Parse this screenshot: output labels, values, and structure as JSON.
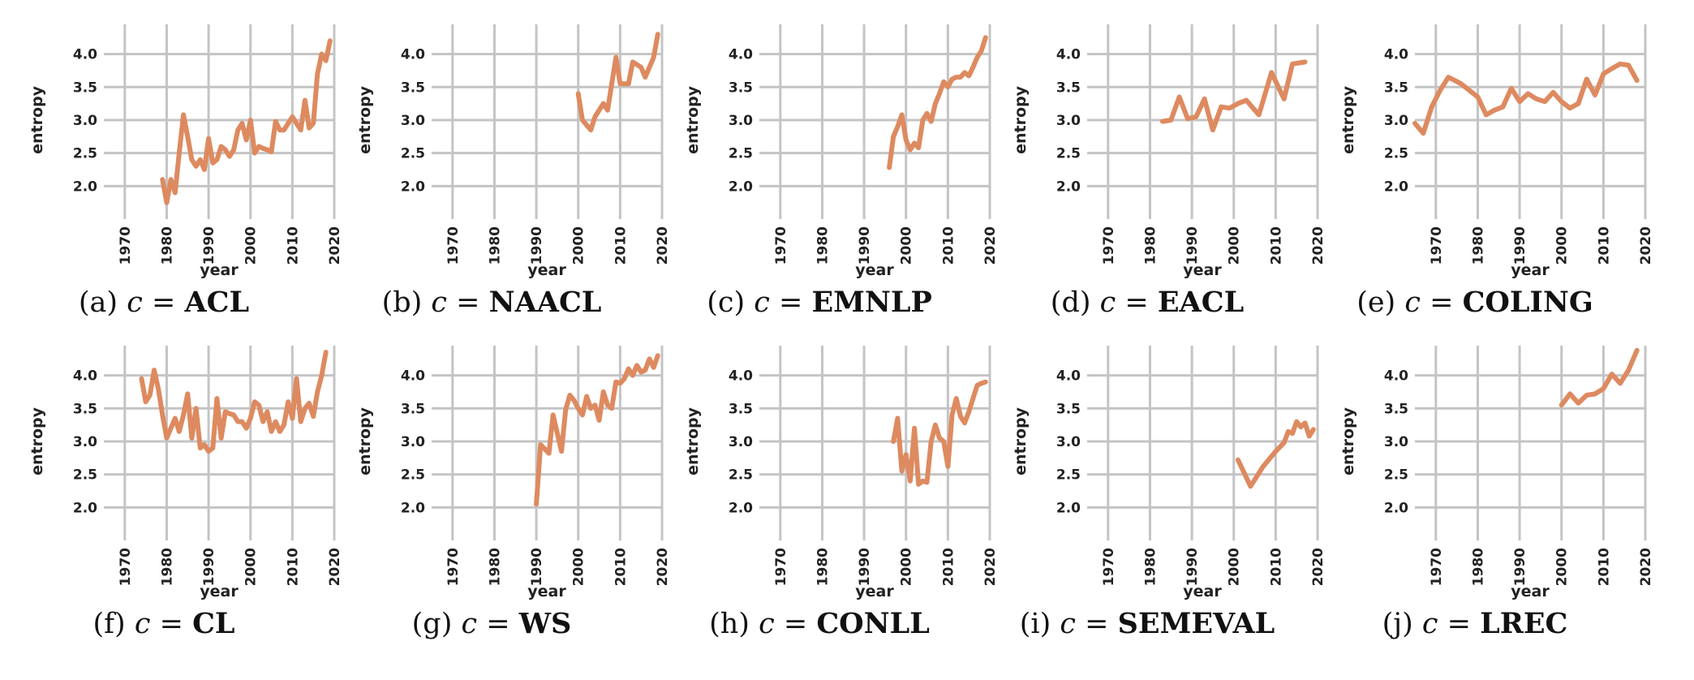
{
  "chart_data": [
    {
      "type": "line",
      "id": "a",
      "label": "(a)",
      "variable": "c",
      "equals": "=",
      "conference": "ACL",
      "xlabel": "year",
      "ylabel": "entropy",
      "xlim": [
        1965,
        2020
      ],
      "ylim": [
        1.5,
        4.45
      ],
      "xticks": [
        "1970",
        "1980",
        "1990",
        "2000",
        "2010",
        "2020"
      ],
      "yticks": [
        "2.0",
        "2.5",
        "3.0",
        "3.5",
        "4.0"
      ],
      "grid": true,
      "color": "#de8a60",
      "x": [
        1979,
        1980,
        1981,
        1982,
        1983,
        1984,
        1985,
        1986,
        1987,
        1988,
        1989,
        1990,
        1991,
        1992,
        1993,
        1994,
        1995,
        1996,
        1997,
        1998,
        1999,
        2000,
        2001,
        2002,
        2003,
        2004,
        2005,
        2006,
        2007,
        2008,
        2009,
        2010,
        2011,
        2012,
        2013,
        2014,
        2015,
        2016,
        2017,
        2018,
        2019
      ],
      "y": [
        2.1,
        1.75,
        2.1,
        1.9,
        2.5,
        3.08,
        2.75,
        2.4,
        2.3,
        2.4,
        2.25,
        2.72,
        2.35,
        2.4,
        2.6,
        2.55,
        2.45,
        2.55,
        2.85,
        2.95,
        2.7,
        3.0,
        2.5,
        2.6,
        2.57,
        2.55,
        2.52,
        2.98,
        2.85,
        2.85,
        2.95,
        3.05,
        2.95,
        2.85,
        3.3,
        2.88,
        2.95,
        3.7,
        4.0,
        3.9,
        4.2
      ]
    },
    {
      "type": "line",
      "id": "b",
      "label": "(b)",
      "variable": "c",
      "equals": "=",
      "conference": "NAACL",
      "xlabel": "year",
      "ylabel": "entropy",
      "xlim": [
        1965,
        2020
      ],
      "ylim": [
        1.5,
        4.45
      ],
      "xticks": [
        "1970",
        "1980",
        "1990",
        "2000",
        "2010",
        "2020"
      ],
      "yticks": [
        "2.0",
        "2.5",
        "3.0",
        "3.5",
        "4.0"
      ],
      "grid": true,
      "color": "#de8a60",
      "x": [
        2000,
        2001,
        2003,
        2004,
        2006,
        2007,
        2009,
        2010,
        2012,
        2013,
        2015,
        2016,
        2018,
        2019
      ],
      "y": [
        3.4,
        3.0,
        2.85,
        3.05,
        3.25,
        3.15,
        3.95,
        3.55,
        3.55,
        3.88,
        3.8,
        3.65,
        3.95,
        4.3
      ]
    },
    {
      "type": "line",
      "id": "c",
      "label": "(c)",
      "variable": "c",
      "equals": "=",
      "conference": "EMNLP",
      "xlabel": "year",
      "ylabel": "entropy",
      "xlim": [
        1965,
        2020
      ],
      "ylim": [
        1.5,
        4.45
      ],
      "xticks": [
        "1970",
        "1980",
        "1990",
        "2000",
        "2010",
        "2020"
      ],
      "yticks": [
        "2.0",
        "2.5",
        "3.0",
        "3.5",
        "4.0"
      ],
      "grid": true,
      "color": "#de8a60",
      "x": [
        1996,
        1997,
        1998,
        1999,
        2000,
        2001,
        2002,
        2003,
        2004,
        2005,
        2006,
        2007,
        2008,
        2009,
        2010,
        2011,
        2012,
        2013,
        2014,
        2015,
        2016,
        2017,
        2018,
        2019
      ],
      "y": [
        2.28,
        2.75,
        2.9,
        3.08,
        2.7,
        2.55,
        2.65,
        2.58,
        3.0,
        3.1,
        2.98,
        3.25,
        3.4,
        3.58,
        3.5,
        3.62,
        3.65,
        3.65,
        3.72,
        3.67,
        3.8,
        3.95,
        4.05,
        4.25
      ]
    },
    {
      "type": "line",
      "id": "d",
      "label": "(d)",
      "variable": "c",
      "equals": "=",
      "conference": "EACL",
      "xlabel": "year",
      "ylabel": "entropy",
      "xlim": [
        1965,
        2020
      ],
      "ylim": [
        1.5,
        4.45
      ],
      "xticks": [
        "1970",
        "1980",
        "1990",
        "2000",
        "2010",
        "2020"
      ],
      "yticks": [
        "2.0",
        "2.5",
        "3.0",
        "3.5",
        "4.0"
      ],
      "grid": true,
      "color": "#de8a60",
      "x": [
        1983,
        1985,
        1987,
        1989,
        1991,
        1993,
        1995,
        1997,
        1999,
        2001,
        2003,
        2006,
        2009,
        2012,
        2014,
        2017
      ],
      "y": [
        2.98,
        3.0,
        3.35,
        3.02,
        3.05,
        3.32,
        2.85,
        3.2,
        3.18,
        3.25,
        3.3,
        3.08,
        3.72,
        3.32,
        3.85,
        3.88
      ]
    },
    {
      "type": "line",
      "id": "e",
      "label": "(e)",
      "variable": "c",
      "equals": "=",
      "conference": "COLING",
      "xlabel": "year",
      "ylabel": "entropy",
      "xlim": [
        1965,
        2020
      ],
      "ylim": [
        1.5,
        4.45
      ],
      "xticks": [
        "1970",
        "1980",
        "1990",
        "2000",
        "2010",
        "2020"
      ],
      "yticks": [
        "2.0",
        "2.5",
        "3.0",
        "3.5",
        "4.0"
      ],
      "grid": true,
      "color": "#de8a60",
      "x": [
        1965,
        1967,
        1969,
        1971,
        1973,
        1976,
        1978,
        1980,
        1982,
        1984,
        1986,
        1988,
        1990,
        1992,
        1994,
        1996,
        1998,
        2000,
        2002,
        2004,
        2006,
        2008,
        2010,
        2012,
        2014,
        2016,
        2018
      ],
      "y": [
        2.95,
        2.8,
        3.2,
        3.45,
        3.65,
        3.55,
        3.45,
        3.35,
        3.08,
        3.15,
        3.2,
        3.48,
        3.28,
        3.4,
        3.32,
        3.28,
        3.42,
        3.28,
        3.18,
        3.25,
        3.62,
        3.38,
        3.7,
        3.78,
        3.85,
        3.83,
        3.6
      ]
    },
    {
      "type": "line",
      "id": "f",
      "label": "(f)",
      "variable": "c",
      "equals": "=",
      "conference": "CL",
      "xlabel": "year",
      "ylabel": "entropy",
      "xlim": [
        1965,
        2020
      ],
      "ylim": [
        1.5,
        4.45
      ],
      "xticks": [
        "1970",
        "1980",
        "1990",
        "2000",
        "2010",
        "2020"
      ],
      "yticks": [
        "2.0",
        "2.5",
        "3.0",
        "3.5",
        "4.0"
      ],
      "grid": true,
      "color": "#de8a60",
      "x": [
        1974,
        1975,
        1976,
        1977,
        1978,
        1979,
        1980,
        1981,
        1982,
        1983,
        1984,
        1985,
        1986,
        1987,
        1988,
        1989,
        1990,
        1991,
        1992,
        1993,
        1994,
        1995,
        1996,
        1997,
        1998,
        1999,
        2000,
        2001,
        2002,
        2003,
        2004,
        2005,
        2006,
        2007,
        2008,
        2009,
        2010,
        2011,
        2012,
        2013,
        2014,
        2015,
        2016,
        2017,
        2018
      ],
      "y": [
        3.95,
        3.6,
        3.7,
        4.08,
        3.8,
        3.4,
        3.05,
        3.2,
        3.35,
        3.15,
        3.4,
        3.72,
        3.05,
        3.5,
        2.9,
        2.95,
        2.85,
        2.9,
        3.65,
        3.05,
        3.45,
        3.42,
        3.4,
        3.3,
        3.3,
        3.2,
        3.35,
        3.6,
        3.55,
        3.3,
        3.45,
        3.15,
        3.3,
        3.15,
        3.25,
        3.6,
        3.35,
        3.95,
        3.3,
        3.5,
        3.58,
        3.38,
        3.75,
        4.0,
        4.35
      ]
    },
    {
      "type": "line",
      "id": "g",
      "label": "(g)",
      "variable": "c",
      "equals": "=",
      "conference": "WS",
      "xlabel": "year",
      "ylabel": "entropy",
      "xlim": [
        1965,
        2020
      ],
      "ylim": [
        1.5,
        4.45
      ],
      "xticks": [
        "1970",
        "1980",
        "1990",
        "2000",
        "2010",
        "2020"
      ],
      "yticks": [
        "2.0",
        "2.5",
        "3.0",
        "3.5",
        "4.0"
      ],
      "grid": true,
      "color": "#de8a60",
      "x": [
        1990,
        1991,
        1993,
        1994,
        1996,
        1997,
        1998,
        1999,
        2000,
        2001,
        2002,
        2003,
        2004,
        2005,
        2006,
        2007,
        2008,
        2009,
        2010,
        2011,
        2012,
        2013,
        2014,
        2015,
        2016,
        2017,
        2018,
        2019
      ],
      "y": [
        2.05,
        2.95,
        2.82,
        3.4,
        2.85,
        3.48,
        3.7,
        3.62,
        3.5,
        3.4,
        3.68,
        3.5,
        3.55,
        3.32,
        3.75,
        3.55,
        3.5,
        3.9,
        3.88,
        3.95,
        4.1,
        4.0,
        4.15,
        4.05,
        4.08,
        4.25,
        4.12,
        4.3
      ]
    },
    {
      "type": "line",
      "id": "h",
      "label": "(h)",
      "variable": "c",
      "equals": "=",
      "conference": "CONLL",
      "xlabel": "year",
      "ylabel": "entropy",
      "xlim": [
        1965,
        2020
      ],
      "ylim": [
        1.5,
        4.45
      ],
      "xticks": [
        "1970",
        "1980",
        "1990",
        "2000",
        "2010",
        "2020"
      ],
      "yticks": [
        "2.0",
        "2.5",
        "3.0",
        "3.5",
        "4.0"
      ],
      "grid": true,
      "color": "#de8a60",
      "x": [
        1997,
        1998,
        1999,
        2000,
        2001,
        2002,
        2003,
        2004,
        2005,
        2006,
        2007,
        2008,
        2009,
        2010,
        2011,
        2012,
        2013,
        2014,
        2015,
        2016,
        2017,
        2018,
        2019
      ],
      "y": [
        3.0,
        3.35,
        2.55,
        2.8,
        2.4,
        3.2,
        2.35,
        2.4,
        2.38,
        3.0,
        3.25,
        3.05,
        3.0,
        2.62,
        3.4,
        3.65,
        3.38,
        3.28,
        3.45,
        3.65,
        3.85,
        3.88,
        3.9
      ]
    },
    {
      "type": "line",
      "id": "i",
      "label": "(i)",
      "variable": "c",
      "equals": "=",
      "conference": "SEMEVAL",
      "xlabel": "year",
      "ylabel": "entropy",
      "xlim": [
        1965,
        2020
      ],
      "ylim": [
        1.5,
        4.45
      ],
      "xticks": [
        "1970",
        "1980",
        "1990",
        "2000",
        "2010",
        "2020"
      ],
      "yticks": [
        "2.0",
        "2.5",
        "3.0",
        "3.5",
        "4.0"
      ],
      "grid": true,
      "color": "#de8a60",
      "x": [
        2001,
        2004,
        2007,
        2010,
        2012,
        2013,
        2014,
        2015,
        2016,
        2017,
        2018,
        2019
      ],
      "y": [
        2.72,
        2.32,
        2.62,
        2.85,
        2.98,
        3.15,
        3.12,
        3.3,
        3.22,
        3.28,
        3.08,
        3.18
      ]
    },
    {
      "type": "line",
      "id": "j",
      "label": "(j)",
      "variable": "c",
      "equals": "=",
      "conference": "LREC",
      "xlabel": "year",
      "ylabel": "entropy",
      "xlim": [
        1965,
        2020
      ],
      "ylim": [
        1.5,
        4.45
      ],
      "xticks": [
        "1970",
        "1980",
        "1990",
        "2000",
        "2010",
        "2020"
      ],
      "yticks": [
        "2.0",
        "2.5",
        "3.0",
        "3.5",
        "4.0"
      ],
      "grid": true,
      "color": "#de8a60",
      "x": [
        2000,
        2002,
        2004,
        2006,
        2008,
        2010,
        2012,
        2014,
        2016,
        2018
      ],
      "y": [
        3.55,
        3.72,
        3.58,
        3.7,
        3.72,
        3.8,
        4.02,
        3.88,
        4.08,
        4.38
      ]
    }
  ]
}
